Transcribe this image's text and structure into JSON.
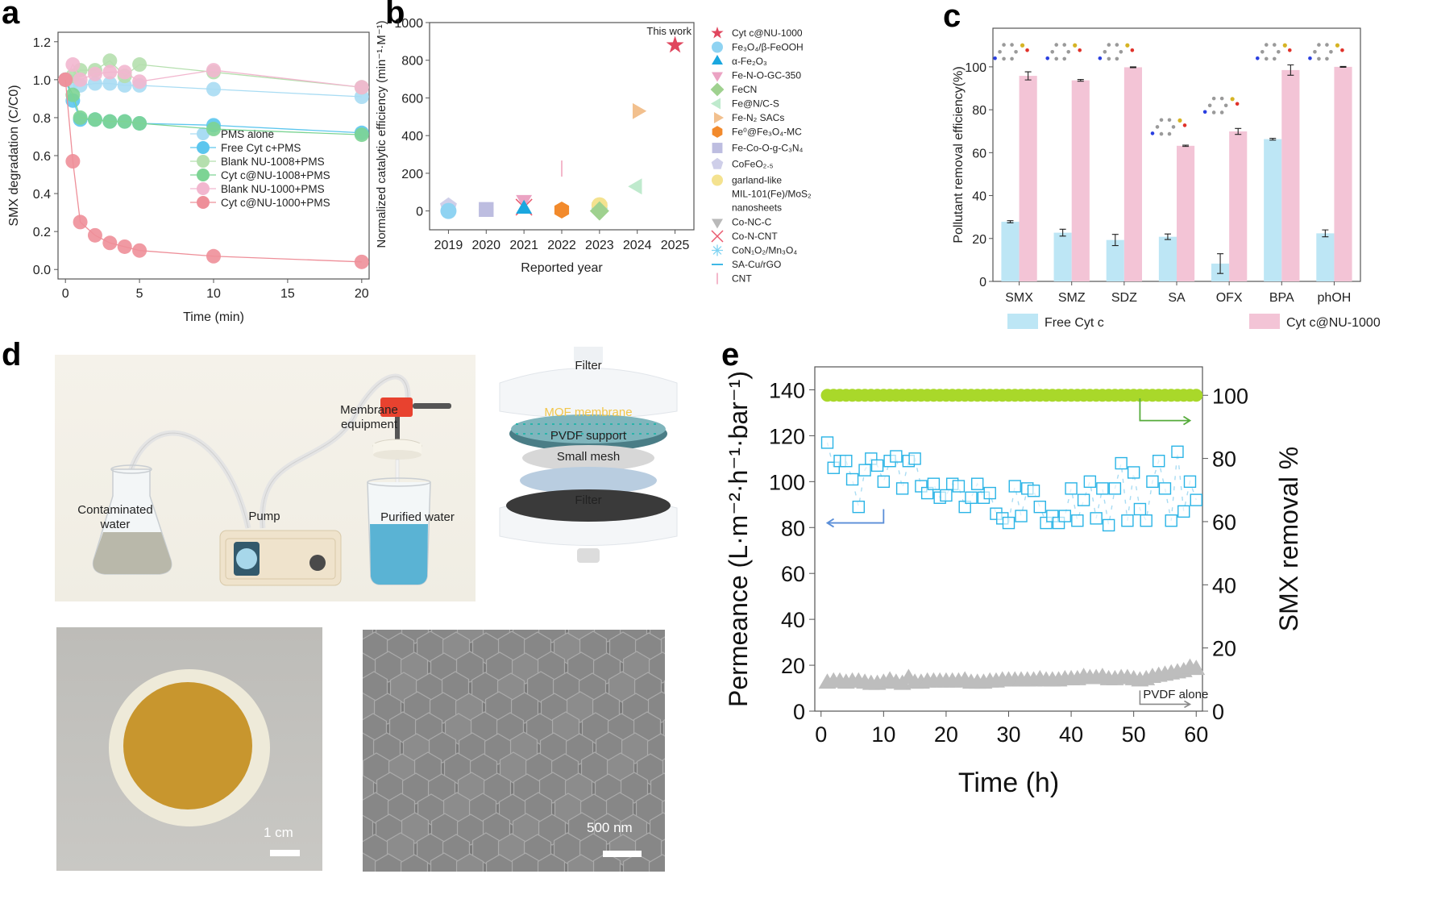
{
  "panels": {
    "a": {
      "letter": "a"
    },
    "b": {
      "letter": "b"
    },
    "c": {
      "letter": "c"
    },
    "d": {
      "letter": "d",
      "labels": {
        "contaminated_water": "Contaminated water",
        "pump": "Pump",
        "membrane_equipment": "Membrane equipment",
        "purified_water": "Purified water",
        "filter_top": "Filter",
        "mof_membrane": "MOF membrane",
        "pvdf_support": "PVDF support",
        "small_mesh": "Small mesh",
        "filter_bottom": "Filter",
        "photo_scale": "1 cm",
        "sem_scale": "500 nm"
      },
      "colors": {
        "membrane": "#c8962e",
        "contaminated": "#b9b8aa",
        "purified": "#5ab3d4",
        "pump_head": "#e8422f"
      }
    },
    "e": {
      "letter": "e"
    }
  },
  "chart_data": [
    {
      "id": "a",
      "type": "line",
      "title": "",
      "xlabel": "Time (min)",
      "ylabel": "SMX degradation (C/C0)",
      "xlim": [
        -0.5,
        20.5
      ],
      "ylim": [
        -0.05,
        1.25
      ],
      "xticks": [
        0,
        5,
        10,
        15,
        20
      ],
      "yticks": [
        0.0,
        0.2,
        0.4,
        0.6,
        0.8,
        1.0,
        1.2
      ],
      "ytick_labels": [
        "0.0",
        "0.2",
        "0.4",
        "0.6",
        "0.8",
        "1.0",
        "1.2"
      ],
      "legend_position": "center-right",
      "x": [
        0,
        0.5,
        1,
        2,
        3,
        4,
        5,
        10,
        20
      ],
      "series": [
        {
          "name": "PMS alone",
          "color": "#a9dcf3",
          "values": [
            1.0,
            0.99,
            0.97,
            0.98,
            0.98,
            0.97,
            0.97,
            0.95,
            0.91
          ]
        },
        {
          "name": "Free Cyt c+PMS",
          "color": "#5cc6ee",
          "values": [
            1.0,
            0.89,
            0.79,
            0.79,
            0.78,
            0.78,
            0.77,
            0.76,
            0.72
          ]
        },
        {
          "name": "Blank NU-1008+PMS",
          "color": "#b5dfae",
          "values": [
            1.0,
            1.02,
            1.05,
            1.05,
            1.1,
            1.02,
            1.08,
            1.04,
            0.96
          ]
        },
        {
          "name": "Cyt c@NU-1008+PMS",
          "color": "#7dd494",
          "values": [
            1.0,
            0.92,
            0.8,
            0.79,
            0.78,
            0.78,
            0.77,
            0.74,
            0.71
          ]
        },
        {
          "name": "Blank NU-1000+PMS",
          "color": "#f2b7cf",
          "values": [
            1.0,
            1.08,
            1.0,
            1.03,
            1.04,
            1.04,
            0.99,
            1.05,
            0.96
          ]
        },
        {
          "name": "Cyt c@NU-1000+PMS",
          "color": "#ee8f99",
          "values": [
            1.0,
            0.57,
            0.25,
            0.18,
            0.14,
            0.12,
            0.1,
            0.07,
            0.04
          ]
        }
      ]
    },
    {
      "id": "b",
      "type": "scatter",
      "xlabel": "Reported year",
      "ylabel": "Normalized catalytic efficiency (min⁻¹·M⁻¹)",
      "xlim": [
        2018.5,
        2025.5
      ],
      "ylim": [
        -100,
        1000
      ],
      "xticks": [
        2019,
        2020,
        2021,
        2022,
        2023,
        2024,
        2025
      ],
      "yticks": [
        0,
        200,
        400,
        600,
        800,
        1000
      ],
      "annotation": "This work",
      "legend_position": "right-outside",
      "points": [
        {
          "name": "Cyt c@NU-1000",
          "label": "Cyt c@NU-1000",
          "marker": "star",
          "color": "#e0465e",
          "year": 2025,
          "value": 880
        },
        {
          "name": "Fe3O4/β-FeOOH",
          "label": "Fe₃O₄/β-FeOOH",
          "marker": "circle",
          "color": "#8fd3f2",
          "year": 2019,
          "value": 0
        },
        {
          "name": "α-Fe2O3",
          "label": "α-Fe₂O₃",
          "marker": "triangle-up",
          "color": "#1aa7df",
          "year": 2021,
          "value": 10
        },
        {
          "name": "Fe-N-O-GC-350",
          "label": "Fe-N-O-GC-350",
          "marker": "triangle-down",
          "color": "#eba3c3",
          "year": 2021,
          "value": 60
        },
        {
          "name": "FeCN",
          "label": "FeCN",
          "marker": "diamond",
          "color": "#9fd18f",
          "year": 2023,
          "value": 0
        },
        {
          "name": "Fe@N/C-S",
          "label": "Fe@N/C-S",
          "marker": "triangle-left",
          "color": "#bfeacd",
          "year": 2024,
          "value": 130
        },
        {
          "name": "Fe-N2 SACs",
          "label": "Fe-N₂ SACs",
          "marker": "triangle-right",
          "color": "#f2c08e",
          "year": 2024,
          "value": 530
        },
        {
          "name": "Fe0@Fe3O4-MC",
          "label": "Fe⁰@Fe₃O₄-MC",
          "marker": "hexagon",
          "color": "#f28a2c",
          "year": 2022,
          "value": 5
        },
        {
          "name": "Fe-Co-O-g-C3N4",
          "label": "Fe-Co-O-g-C₃N₄",
          "marker": "square",
          "color": "#bdbde0",
          "year": 2020,
          "value": 8
        },
        {
          "name": "CoFeO2.5",
          "label": "CoFeO₂.₅",
          "marker": "pentagon",
          "color": "#cfcfe9",
          "year": 2019,
          "value": 25
        },
        {
          "name": "garland-like MIL-101(Fe)/MoS2 nanosheets",
          "label": "garland-like MIL-101(Fe)/MoS₂ nanosheets",
          "marker": "sphere",
          "color": "#f4e28f",
          "year": 2023,
          "value": 30
        },
        {
          "name": "Co-NC-C",
          "label": "Co-NC-C",
          "marker": "triangle-down",
          "color": "#b9b9b9",
          "year": 2023,
          "value": 20
        },
        {
          "name": "Co-N-CNT",
          "label": "Co-N-CNT",
          "marker": "x",
          "color": "#e9596e",
          "year": 2021,
          "value": 20
        },
        {
          "name": "CoN1O2/Mn3O4",
          "label": "CoN₁O₂/Mn₃O₄",
          "marker": "asterisk",
          "color": "#7fd3f2",
          "year": 2023,
          "value": 15
        },
        {
          "name": "SA-Cu/rGO",
          "label": "SA-Cu/rGO",
          "marker": "hline",
          "color": "#3fb8e6",
          "year": 2020,
          "value": 8
        },
        {
          "name": "CNT",
          "label": "CNT",
          "marker": "vline",
          "color": "#f4b8cb",
          "year": 2022,
          "value": 225
        }
      ]
    },
    {
      "id": "c",
      "type": "bar",
      "xlabel": "",
      "ylabel": "Pollutant removal efficiency(%)",
      "ylim": [
        0,
        118
      ],
      "yticks": [
        0,
        20,
        40,
        60,
        80,
        100
      ],
      "categories": [
        "SMX",
        "SMZ",
        "SDZ",
        "SA",
        "OFX",
        "BPA",
        "phOH"
      ],
      "legend_position": "bottom",
      "series": [
        {
          "name": "Free Cyt c",
          "color": "#bde6f5",
          "values": [
            27.8,
            22.7,
            19.3,
            20.8,
            8.3,
            66.3,
            22.4
          ],
          "errors": [
            0.5,
            1.6,
            2.6,
            1.3,
            4.6,
            0.4,
            1.6
          ]
        },
        {
          "name": "Cyt c@NU-1000",
          "color": "#f3c4d6",
          "values": [
            95.8,
            93.7,
            99.8,
            63.2,
            69.9,
            98.5,
            100.0
          ],
          "errors": [
            1.9,
            0.4,
            0.2,
            0.3,
            1.4,
            2.4,
            0.2
          ]
        }
      ]
    },
    {
      "id": "e",
      "type": "scatter",
      "xlabel": "Time (h)",
      "ylabel": "Permeance (L·m⁻²·h⁻¹·bar⁻¹)",
      "y2label": "SMX removal %",
      "xlim": [
        -1,
        61
      ],
      "ylim": [
        0,
        150
      ],
      "y2lim": [
        0,
        109
      ],
      "xticks": [
        0,
        10,
        20,
        30,
        40,
        50,
        60
      ],
      "yticks": [
        0,
        20,
        40,
        60,
        80,
        100,
        120,
        140
      ],
      "y2ticks": [
        0,
        20,
        40,
        60,
        80,
        100
      ],
      "annotation": "PVDF alone",
      "series": [
        {
          "name": "SMX removal",
          "axis": "right",
          "marker": "circle",
          "color": "#a9d82a",
          "x": [
            1,
            2,
            3,
            4,
            5,
            6,
            7,
            8,
            9,
            10,
            11,
            12,
            13,
            14,
            15,
            16,
            17,
            18,
            19,
            20,
            21,
            22,
            23,
            24,
            25,
            26,
            27,
            28,
            29,
            30,
            31,
            32,
            33,
            34,
            35,
            36,
            37,
            38,
            39,
            40,
            41,
            42,
            43,
            44,
            45,
            46,
            47,
            48,
            49,
            50,
            51,
            52,
            53,
            54,
            55,
            56,
            57,
            58,
            59,
            60
          ],
          "values": [
            100,
            100,
            100,
            100,
            100,
            100,
            100,
            100,
            100,
            100,
            100,
            100,
            100,
            100,
            100,
            100,
            100,
            100,
            100,
            100,
            100,
            100,
            100,
            100,
            100,
            100,
            100,
            100,
            100,
            100,
            100,
            100,
            100,
            100,
            100,
            100,
            100,
            100,
            100,
            100,
            100,
            100,
            100,
            100,
            100,
            100,
            100,
            100,
            100,
            100,
            100,
            100,
            100,
            100,
            100,
            100,
            100,
            100,
            100,
            100
          ]
        },
        {
          "name": "Permeance (MOF membrane)",
          "axis": "left",
          "marker": "square-open",
          "color": "#2ab4e6",
          "x": [
            1,
            2,
            3,
            4,
            5,
            6,
            7,
            8,
            9,
            10,
            11,
            12,
            13,
            14,
            15,
            16,
            17,
            18,
            19,
            20,
            21,
            22,
            23,
            24,
            25,
            26,
            27,
            28,
            29,
            30,
            31,
            32,
            33,
            34,
            35,
            36,
            37,
            38,
            39,
            40,
            41,
            42,
            43,
            44,
            45,
            46,
            47,
            48,
            49,
            50,
            51,
            52,
            53,
            54,
            55,
            56,
            57,
            58,
            59,
            60
          ],
          "values": [
            117,
            106,
            109,
            109,
            101,
            89,
            105,
            110,
            107,
            100,
            109,
            111,
            97,
            109,
            110,
            98,
            95,
            99,
            93,
            94,
            99,
            98,
            89,
            93,
            99,
            93,
            95,
            86,
            84,
            82,
            98,
            85,
            97,
            96,
            89,
            82,
            85,
            82,
            85,
            97,
            83,
            92,
            100,
            84,
            97,
            81,
            97,
            108,
            83,
            104,
            88,
            83,
            100,
            109,
            97,
            83,
            113,
            87,
            100,
            92
          ]
        },
        {
          "name": "PVDF alone",
          "axis": "left",
          "marker": "triangle-up",
          "color": "#bdbdbd",
          "x": [
            1,
            2,
            3,
            4,
            5,
            6,
            7,
            8,
            9,
            10,
            11,
            12,
            13,
            14,
            15,
            16,
            17,
            18,
            19,
            20,
            21,
            22,
            23,
            24,
            25,
            26,
            27,
            28,
            29,
            30,
            31,
            32,
            33,
            34,
            35,
            36,
            37,
            38,
            39,
            40,
            41,
            42,
            43,
            44,
            45,
            46,
            47,
            48,
            49,
            50,
            51,
            52,
            53,
            54,
            55,
            56,
            57,
            58,
            59,
            60
          ],
          "values": [
            12,
            12.5,
            12.5,
            12,
            12.5,
            12.5,
            12,
            11.5,
            11.5,
            12,
            13,
            12,
            11.5,
            14,
            12,
            12,
            12.5,
            12.5,
            12.5,
            12.5,
            12.5,
            12.5,
            13,
            12,
            12,
            12,
            12.5,
            12.5,
            13,
            13,
            13,
            13,
            13,
            13,
            13.5,
            13,
            13,
            13,
            13.5,
            13.5,
            13.5,
            14.5,
            14,
            14,
            14.5,
            13.5,
            13.5,
            14,
            14,
            13.5,
            13,
            13.5,
            14.5,
            15,
            15.5,
            16,
            16.5,
            17,
            18.5,
            18
          ]
        }
      ]
    }
  ]
}
